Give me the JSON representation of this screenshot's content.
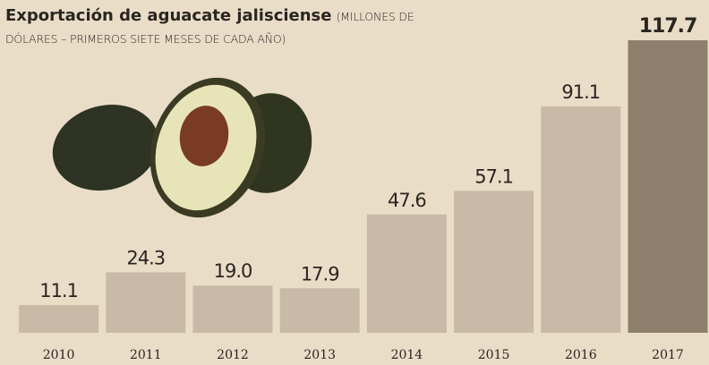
{
  "chart_data": {
    "type": "bar",
    "title": "Exportación de aguacate jalisciense",
    "subtitle": "(MILLONES DE DÓLARES – PRIMEROS SIETE MESES DE CADA AÑO)",
    "categories": [
      "2010",
      "2011",
      "2012",
      "2013",
      "2014",
      "2015",
      "2016",
      "2017"
    ],
    "values": [
      11.1,
      24.3,
      19.0,
      17.9,
      47.6,
      57.1,
      91.1,
      117.7
    ],
    "value_labels": [
      "11.1",
      "24.3",
      "19.0",
      "17.9",
      "47.6",
      "57.1",
      "91.1",
      "117.7"
    ],
    "colors": [
      "#c8baa6",
      "#c8baa6",
      "#c8baa6",
      "#c8baa6",
      "#c8baa6",
      "#c8baa6",
      "#c8baa6",
      "#8e7f6d"
    ],
    "label_bold": [
      false,
      false,
      false,
      false,
      false,
      false,
      false,
      true
    ]
  }
}
